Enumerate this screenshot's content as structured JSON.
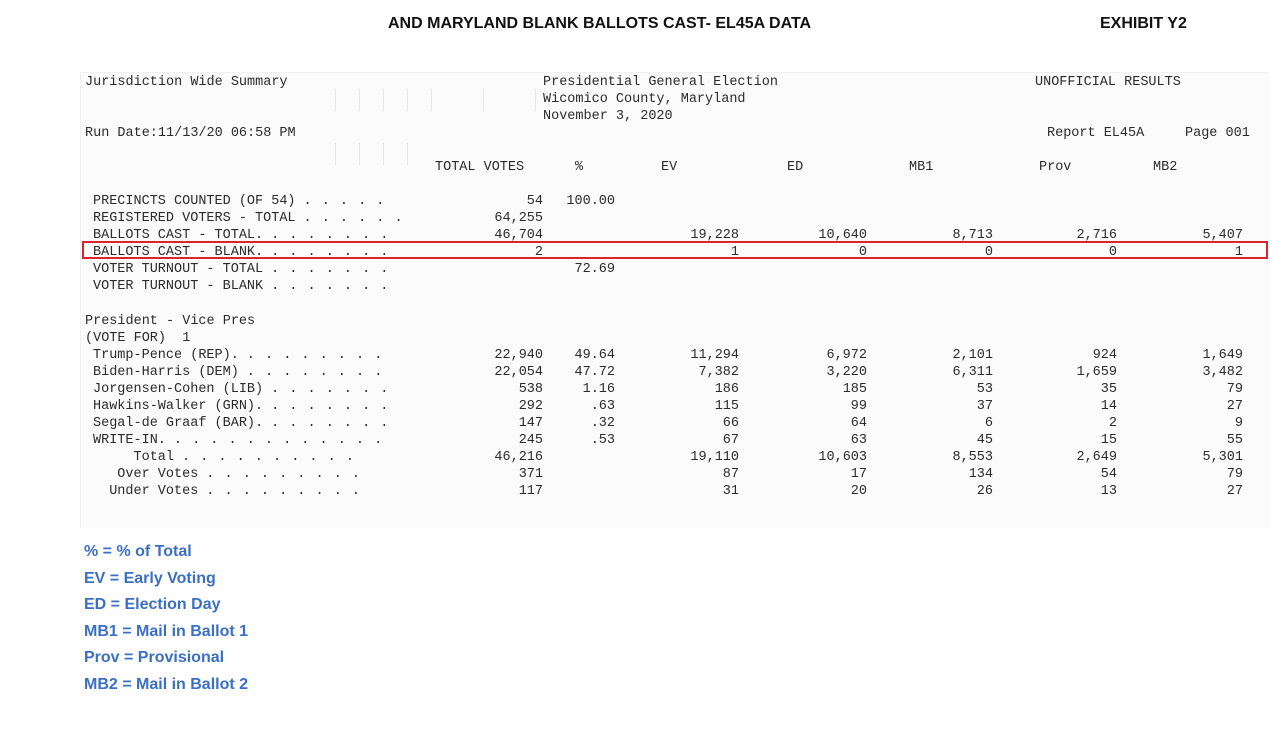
{
  "doc_title": "AND MARYLAND BLANK BALLOTS CAST- EL45A DATA",
  "exhibit": "EXHIBIT Y2",
  "report": {
    "summary_label": "Jurisdiction Wide Summary",
    "election_name": "Presidential General Election",
    "county": "Wicomico County, Maryland",
    "election_date": "November 3, 2020",
    "status": "UNOFFICIAL RESULTS",
    "run_date": "Run Date:11/13/20 06:58 PM",
    "report_id": "Report EL45A",
    "page": "Page 001",
    "columns": [
      "TOTAL VOTES",
      "%",
      "EV",
      "ED",
      "MB1",
      "Prov",
      "MB2"
    ],
    "stats_rows": [
      {
        "label": "PRECINCTS COUNTED (OF 54)",
        "dots": ". . . . .",
        "values": [
          "54",
          "100.00",
          "",
          "",
          "",
          "",
          ""
        ]
      },
      {
        "label": "REGISTERED VOTERS - TOTAL",
        "dots": ". . . . . .",
        "values": [
          "64,255",
          "",
          "",
          "",
          "",
          "",
          ""
        ]
      },
      {
        "label": "BALLOTS CAST - TOTAL.",
        "dots": ". . . . . . .",
        "values": [
          "46,704",
          "",
          "19,228",
          "10,640",
          "8,713",
          "2,716",
          "5,407"
        ]
      },
      {
        "label": "BALLOTS CAST - BLANK.",
        "dots": ". . . . . . .",
        "values": [
          "2",
          "",
          "1",
          "0",
          "0",
          "0",
          "1"
        ]
      },
      {
        "label": "VOTER TURNOUT - TOTAL",
        "dots": ". . . . . . .",
        "values": [
          "",
          "72.69",
          "",
          "",
          "",
          "",
          ""
        ]
      },
      {
        "label": "VOTER TURNOUT - BLANK",
        "dots": ". . . . . . .",
        "values": [
          "",
          "",
          "",
          "",
          "",
          "",
          ""
        ]
      }
    ],
    "contest_title": "President - Vice Pres",
    "vote_for": "(VOTE FOR)  1",
    "contest_rows": [
      {
        "label": "Trump-Pence (REP).",
        "dots": ". . . . . . . .",
        "values": [
          "22,940",
          "49.64",
          "11,294",
          "6,972",
          "2,101",
          "924",
          "1,649"
        ]
      },
      {
        "label": "Biden-Harris (DEM)",
        "dots": ". . . . . . . .",
        "values": [
          "22,054",
          "47.72",
          "7,382",
          "3,220",
          "6,311",
          "1,659",
          "3,482"
        ]
      },
      {
        "label": "Jorgensen-Cohen (LIB)",
        "dots": ". . . . . . .",
        "values": [
          "538",
          "1.16",
          "186",
          "185",
          "53",
          "35",
          "79"
        ]
      },
      {
        "label": "Hawkins-Walker (GRN).",
        "dots": ". . . . . . .",
        "values": [
          "292",
          ".63",
          "115",
          "99",
          "37",
          "14",
          "27"
        ]
      },
      {
        "label": "Segal-de Graaf (BAR).",
        "dots": ". . . . . . .",
        "values": [
          "147",
          ".32",
          "66",
          "64",
          "6",
          "2",
          "9"
        ]
      },
      {
        "label": "WRITE-IN.",
        "dots": ". . . . . . . . . . . .",
        "values": [
          "245",
          ".53",
          "67",
          "63",
          "45",
          "15",
          "55"
        ]
      },
      {
        "label": "     Total",
        "dots": ". . . . . . . . . .",
        "values": [
          "46,216",
          "",
          "19,110",
          "10,603",
          "8,553",
          "2,649",
          "5,301"
        ]
      },
      {
        "label": "   Over Votes",
        "dots": ". . . . . . . . .",
        "values": [
          "371",
          "",
          "87",
          "17",
          "134",
          "54",
          "79"
        ]
      },
      {
        "label": "  Under Votes",
        "dots": ". . . . . . . . .",
        "values": [
          "117",
          "",
          "31",
          "20",
          "26",
          "13",
          "27"
        ]
      }
    ]
  },
  "legend": [
    "% = % of Total",
    "EV = Early Voting",
    "ED = Election Day",
    "MB1 = Mail in Ballot 1",
    "Prov = Provisional",
    "MB2 = Mail in Ballot 2"
  ],
  "colors": {
    "highlight": "#d9252b",
    "legend": "#3a6fc4"
  }
}
